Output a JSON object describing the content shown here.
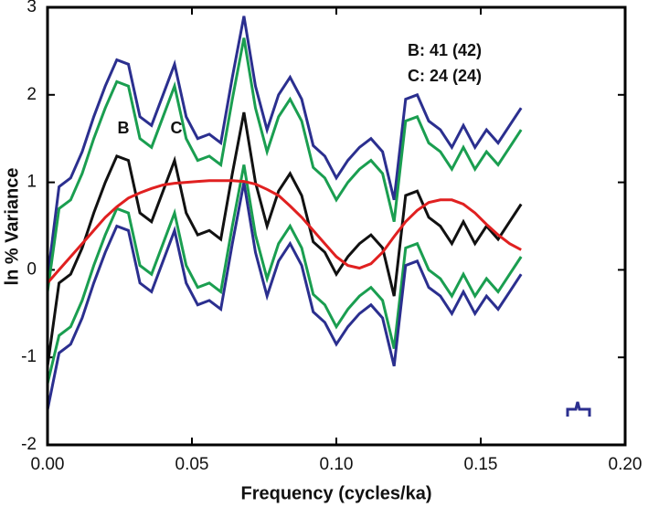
{
  "chart_data": {
    "type": "line",
    "xlabel": "Frequency (cycles/ka)",
    "ylabel": "ln % Variance",
    "annotations": [
      "B",
      "C",
      "B: 41 (42)",
      "C: 24 (24)"
    ],
    "xlim": [
      0,
      0.2
    ],
    "xticks": [
      {
        "value": 0,
        "label": "0.00"
      },
      {
        "value": 0.05,
        "label": "0.05"
      },
      {
        "value": 0.1,
        "label": "0.10"
      },
      {
        "value": 0.15,
        "label": "0.15"
      },
      {
        "value": 0.2,
        "label": "0.20"
      }
    ],
    "ylim": [
      -2,
      3
    ],
    "yticks": [
      -2,
      -1,
      0,
      1,
      2,
      3
    ],
    "x": [
      0,
      0.004,
      0.008,
      0.012,
      0.016,
      0.02,
      0.024,
      0.028,
      0.032,
      0.036,
      0.04,
      0.044,
      0.048,
      0.052,
      0.056,
      0.06,
      0.064,
      0.068,
      0.072,
      0.076,
      0.08,
      0.084,
      0.088,
      0.092,
      0.096,
      0.1,
      0.104,
      0.108,
      0.112,
      0.116,
      0.12,
      0.124,
      0.128,
      0.132,
      0.136,
      0.14,
      0.144,
      0.148,
      0.152,
      0.156,
      0.16,
      0.164
    ],
    "series": [
      {
        "color": "#2b2f8f",
        "values": [
          -0.1,
          0.95,
          1.05,
          1.35,
          1.75,
          2.1,
          2.4,
          2.35,
          1.75,
          1.65,
          2.0,
          2.35,
          1.75,
          1.5,
          1.55,
          1.45,
          2.2,
          2.9,
          2.1,
          1.6,
          2.0,
          2.2,
          1.95,
          1.42,
          1.3,
          1.05,
          1.25,
          1.4,
          1.5,
          1.35,
          0.8,
          1.95,
          2.0,
          1.7,
          1.6,
          1.4,
          1.65,
          1.4,
          1.6,
          1.45,
          1.65,
          1.85
        ]
      },
      {
        "color": "#1a9e50",
        "values": [
          -0.25,
          0.7,
          0.8,
          1.1,
          1.5,
          1.85,
          2.15,
          2.1,
          1.5,
          1.4,
          1.75,
          2.1,
          1.5,
          1.25,
          1.3,
          1.2,
          1.95,
          2.65,
          1.85,
          1.35,
          1.75,
          1.95,
          1.7,
          1.17,
          1.05,
          0.8,
          1.0,
          1.15,
          1.25,
          1.1,
          0.55,
          1.7,
          1.75,
          1.45,
          1.35,
          1.15,
          1.4,
          1.15,
          1.35,
          1.2,
          1.4,
          1.6
        ]
      },
      {
        "color": "#111111",
        "values": [
          -1.1,
          -0.15,
          -0.05,
          0.25,
          0.65,
          1.0,
          1.3,
          1.25,
          0.65,
          0.55,
          0.9,
          1.25,
          0.65,
          0.4,
          0.45,
          0.35,
          1.1,
          1.8,
          1.0,
          0.5,
          0.9,
          1.1,
          0.85,
          0.32,
          0.2,
          -0.05,
          0.15,
          0.3,
          0.4,
          0.25,
          -0.3,
          0.85,
          0.9,
          0.6,
          0.5,
          0.3,
          0.55,
          0.3,
          0.5,
          0.35,
          0.55,
          0.75
        ]
      },
      {
        "color": "#1a9e50",
        "values": [
          -1.3,
          -0.75,
          -0.65,
          -0.35,
          0.05,
          0.4,
          0.7,
          0.65,
          0.05,
          -0.05,
          0.3,
          0.65,
          0.05,
          -0.2,
          -0.15,
          -0.25,
          0.5,
          1.2,
          0.4,
          -0.1,
          0.3,
          0.5,
          0.25,
          -0.28,
          -0.4,
          -0.65,
          -0.45,
          -0.3,
          -0.2,
          -0.35,
          -0.9,
          0.25,
          0.3,
          0.0,
          -0.1,
          -0.3,
          -0.05,
          -0.3,
          -0.1,
          -0.25,
          -0.05,
          0.15
        ]
      },
      {
        "color": "#2b2f8f",
        "values": [
          -1.6,
          -0.95,
          -0.85,
          -0.55,
          -0.15,
          0.2,
          0.5,
          0.45,
          -0.15,
          -0.25,
          0.1,
          0.45,
          -0.15,
          -0.4,
          -0.35,
          -0.45,
          0.3,
          1.0,
          0.2,
          -0.3,
          0.1,
          0.3,
          0.05,
          -0.48,
          -0.6,
          -0.85,
          -0.65,
          -0.5,
          -0.4,
          -0.55,
          -1.1,
          0.05,
          0.1,
          -0.2,
          -0.3,
          -0.5,
          -0.25,
          -0.5,
          -0.3,
          -0.45,
          -0.25,
          -0.05
        ]
      },
      {
        "color": "#e02020",
        "values": [
          -0.15,
          0.0,
          0.15,
          0.3,
          0.45,
          0.6,
          0.72,
          0.82,
          0.88,
          0.93,
          0.97,
          0.99,
          1.0,
          1.01,
          1.02,
          1.02,
          1.02,
          1.01,
          0.98,
          0.92,
          0.85,
          0.73,
          0.6,
          0.45,
          0.3,
          0.15,
          0.05,
          0.02,
          0.07,
          0.2,
          0.38,
          0.55,
          0.68,
          0.77,
          0.8,
          0.8,
          0.75,
          0.65,
          0.52,
          0.4,
          0.3,
          0.23
        ]
      }
    ]
  }
}
